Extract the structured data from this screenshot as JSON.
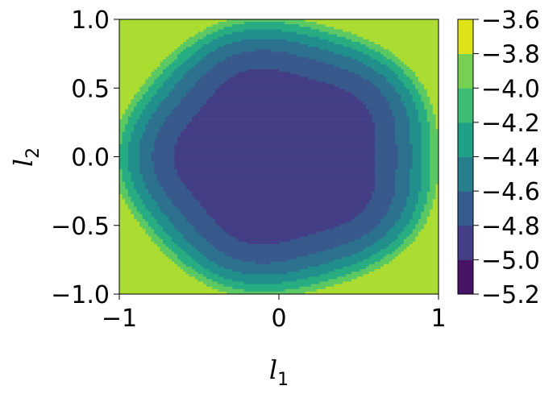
{
  "chart_data": {
    "type": "heatmap",
    "subtype": "filled-contour",
    "title": "",
    "xlabel": {
      "symbol": "l",
      "subscript": "1"
    },
    "ylabel": {
      "symbol": "l",
      "subscript": "2"
    },
    "xlim": [
      -1.0,
      1.0
    ],
    "ylim": [
      -1.0,
      1.0
    ],
    "x_ticks": [
      -1,
      0,
      1
    ],
    "x_tick_labels": [
      "−1",
      "0",
      "1"
    ],
    "y_ticks": [
      -1.0,
      -0.5,
      0.0,
      0.5,
      1.0
    ],
    "y_tick_labels": [
      "−1.0",
      "−0.5",
      "0.0",
      "0.5",
      "1.0"
    ],
    "grid": false,
    "colormap": "viridis",
    "levels": [
      -5.2,
      -5.0,
      -4.8,
      -4.6,
      -4.4,
      -4.2,
      -4.0,
      -3.8,
      -3.6
    ],
    "band_colors": [
      "#481a6c",
      "#433e85",
      "#38598c",
      "#2c728e",
      "#21908d",
      "#27ad81",
      "#5cc863",
      "#aadc32"
    ],
    "colorbar": {
      "position": "right",
      "ticks": [
        -5.2,
        -5.0,
        -4.8,
        -4.6,
        -4.4,
        -4.2,
        -4.0,
        -3.8,
        -3.6
      ],
      "tick_labels": [
        "−5.2",
        "−5.0",
        "−4.8",
        "−4.6",
        "−4.4",
        "−4.2",
        "−4.0",
        "−3.8",
        "−3.6"
      ],
      "band_colors": [
        "#471365",
        "#433e85",
        "#365c8d",
        "#277f8e",
        "#1fa187",
        "#3dbc74",
        "#75d054",
        "#dde318"
      ]
    },
    "field": {
      "description_of_shape": "pentagonal basin around a central plateau",
      "center_plateau_radius": 0.36,
      "pentagon_symmetry": 5,
      "min_value": -5.2,
      "max_value": -3.6
    }
  }
}
